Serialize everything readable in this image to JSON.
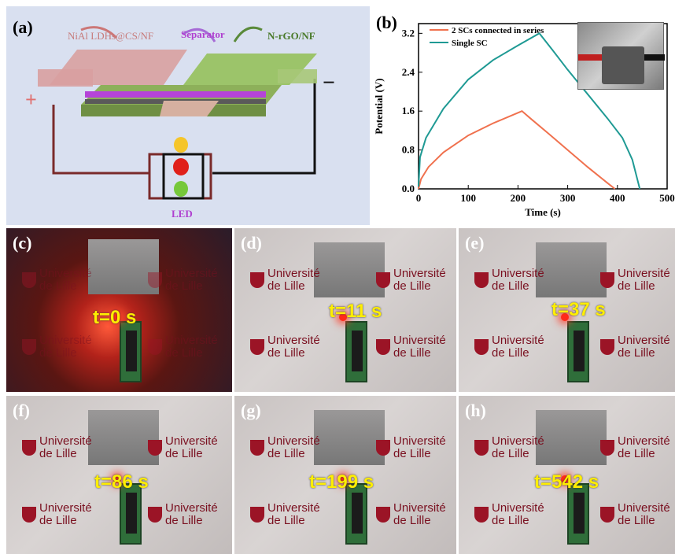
{
  "panel_a": {
    "label": "(a)",
    "electrode_left": "NiAl LDHs@CS/NF",
    "separator": "Separator",
    "electrode_right": "N-rGO/NF",
    "plus": "+",
    "minus": "−",
    "led": "LED"
  },
  "panel_b": {
    "label": "(b)"
  },
  "chart_data": {
    "type": "line",
    "title": "",
    "xlabel": "Time (s)",
    "ylabel": "Potential (V)",
    "xlim": [
      0,
      500
    ],
    "ylim": [
      0,
      3.4
    ],
    "xticks": [
      0,
      100,
      200,
      300,
      400,
      500
    ],
    "yticks": [
      0.0,
      0.8,
      1.6,
      2.4,
      3.2
    ],
    "ytick_labels": [
      "0.0",
      "0.8",
      "1.6",
      "2.4",
      "3.2"
    ],
    "legend_position": "top-left",
    "series": [
      {
        "name": "2 SCs connected in series",
        "color": "#f0714e",
        "x": [
          0,
          5,
          20,
          50,
          100,
          150,
          208,
          225,
          260,
          300,
          340,
          380,
          395
        ],
        "y": [
          0.0,
          0.2,
          0.45,
          0.75,
          1.1,
          1.35,
          1.6,
          1.45,
          1.15,
          0.8,
          0.45,
          0.12,
          0.0
        ]
      },
      {
        "name": "Single SC",
        "color": "#1f9a94",
        "x": [
          0,
          3,
          15,
          50,
          100,
          150,
          200,
          243,
          270,
          300,
          340,
          380,
          410,
          430,
          445
        ],
        "y": [
          0.05,
          0.65,
          1.05,
          1.65,
          2.25,
          2.65,
          2.95,
          3.2,
          2.85,
          2.45,
          1.95,
          1.45,
          1.05,
          0.6,
          0.0
        ]
      }
    ]
  },
  "photos": [
    {
      "label": "(c)",
      "time": "t=0 s"
    },
    {
      "label": "(d)",
      "time": "t=11 s"
    },
    {
      "label": "(e)",
      "time": "t=37 s"
    },
    {
      "label": "(f)",
      "time": "t=86 s"
    },
    {
      "label": "(g)",
      "time": "t=199 s"
    },
    {
      "label": "(h)",
      "time": "t=542 s"
    }
  ],
  "logo": {
    "line1": "Université",
    "line2": "de Lille"
  }
}
